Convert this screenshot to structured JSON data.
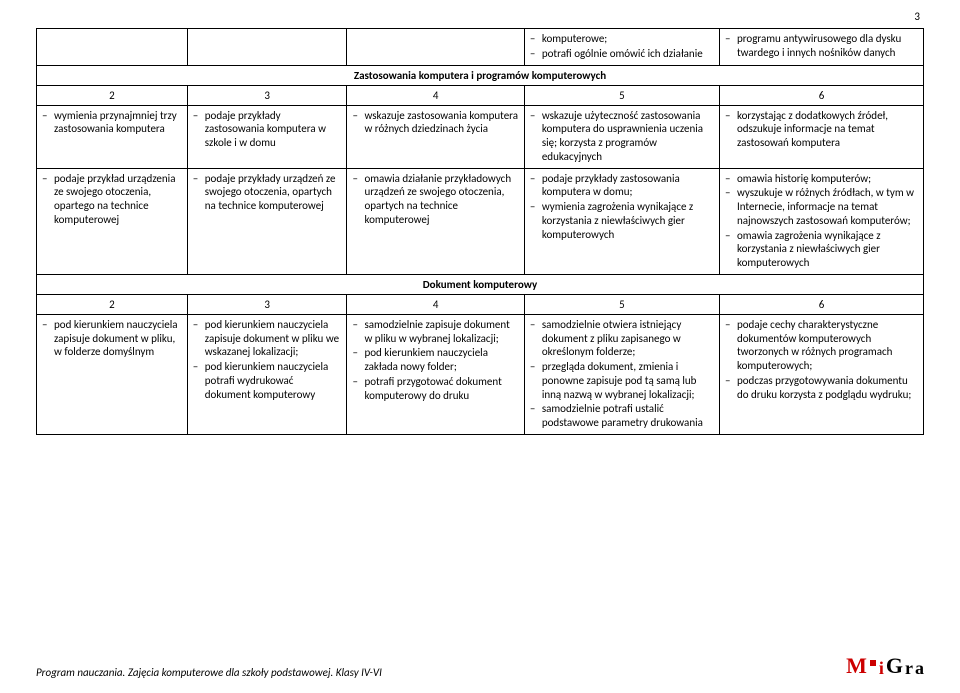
{
  "page_number": "3",
  "top_row": {
    "c4": [
      "komputerowe;",
      "potrafi ogólnie omówić ich działanie"
    ],
    "c5": [
      "programu antywirusowego dla dysku twardego i innych nośników danych"
    ]
  },
  "section1_title": "Zastosowania komputera i programów komputerowych",
  "cols": [
    "2",
    "3",
    "4",
    "5",
    "6"
  ],
  "s1r1": {
    "c1": [
      "wymienia przynajmniej trzy zastosowania komputera"
    ],
    "c2": [
      "podaje przykłady zastosowania komputera w szkole i w domu"
    ],
    "c3": [
      "wskazuje zastosowania komputera w różnych dziedzinach życia"
    ],
    "c4": [
      "wskazuje użyteczność zastosowania komputera do usprawnienia uczenia się; korzysta z programów edukacyjnych"
    ],
    "c5": [
      "korzystając z dodatkowych źródeł, odszukuje informacje na temat zastosowań komputera"
    ]
  },
  "s1r2": {
    "c1": [
      "podaje przykład urządzenia ze swojego otoczenia, opartego na technice komputerowej"
    ],
    "c2": [
      "podaje przykłady urządzeń ze swojego otoczenia, opartych na technice komputerowej"
    ],
    "c3": [
      "omawia działanie przykładowych urządzeń ze swojego otoczenia, opartych na technice komputerowej"
    ],
    "c4": [
      "podaje przykłady zastosowania komputera w domu;",
      "wymienia zagrożenia wynikające z korzystania z niewłaściwych gier komputerowych"
    ],
    "c5": [
      "omawia historię komputerów;",
      "wyszukuje w różnych źródłach, w tym w Internecie, informacje na temat najnowszych zastosowań komputerów;",
      "omawia zagrożenia wynikające z korzystania z niewłaściwych gier komputerowych"
    ]
  },
  "section2_title": "Dokument komputerowy",
  "s2r1": {
    "c1": [
      "pod kierunkiem nauczyciela zapisuje dokument w pliku, w folderze domyślnym"
    ],
    "c2": [
      "pod kierunkiem nauczyciela zapisuje dokument w pliku we wskazanej lokalizacji;",
      "pod kierunkiem nauczyciela potrafi wydrukować dokument komputerowy"
    ],
    "c3": [
      "samodzielnie zapisuje dokument w pliku w wybranej lokalizacji;",
      "pod kierunkiem nauczyciela zakłada nowy folder;",
      "potrafi przygotować dokument komputerowy do druku"
    ],
    "c4": [
      "samodzielnie otwiera istniejący dokument z pliku zapisanego w określonym folderze;",
      "przegląda dokument, zmienia i ponowne zapisuje pod tą samą lub inną nazwą w wybranej lokalizacji;",
      "samodzielnie potrafi ustalić podstawowe parametry drukowania"
    ],
    "c5": [
      "podaje cechy charakterystyczne dokumentów komputerowych tworzonych w różnych programach komputerowych;",
      "podczas przygotowywania dokumentu do druku korzysta z podglądu wydruku;"
    ]
  },
  "footer_text": "Program nauczania. Zajęcia komputerowe dla szkoły podstawowej. Klasy IV-VI",
  "logo": {
    "M": "M",
    "i": "i",
    "G": "G",
    "r": "r",
    "a": "a"
  }
}
